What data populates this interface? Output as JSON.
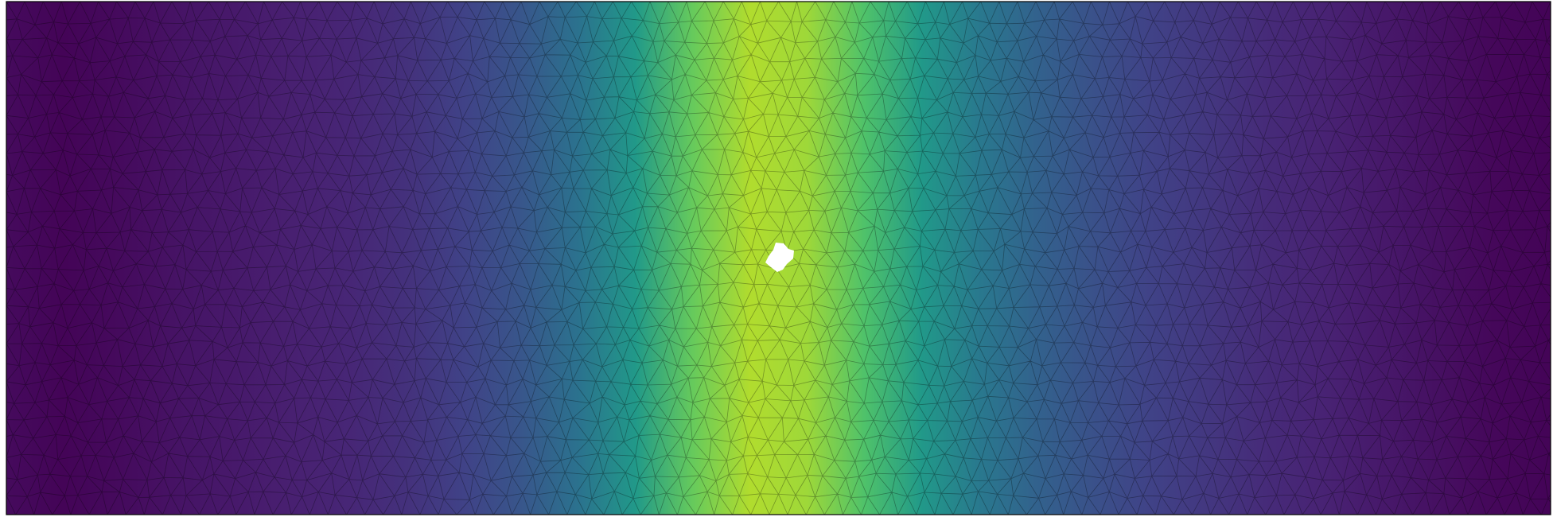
{
  "figure": {
    "kind": "finite-element mesh",
    "colormap": "viridis",
    "colors": {
      "background": "#ffffff",
      "frame": "#000000",
      "mesh_edges": "#000000"
    },
    "field_profile": {
      "description_values_along_x": [
        0.03,
        0.01,
        0.03,
        0.06,
        0.08,
        0.1,
        0.12,
        0.16,
        0.22,
        0.3,
        0.42,
        0.6,
        0.85,
        0.98,
        0.95,
        0.8,
        0.6,
        0.45,
        0.35,
        0.28,
        0.22,
        0.18,
        0.14,
        0.11,
        0.08,
        0.05,
        0.02,
        0.01
      ],
      "peak_fraction_of_width": 0.504
    }
  }
}
